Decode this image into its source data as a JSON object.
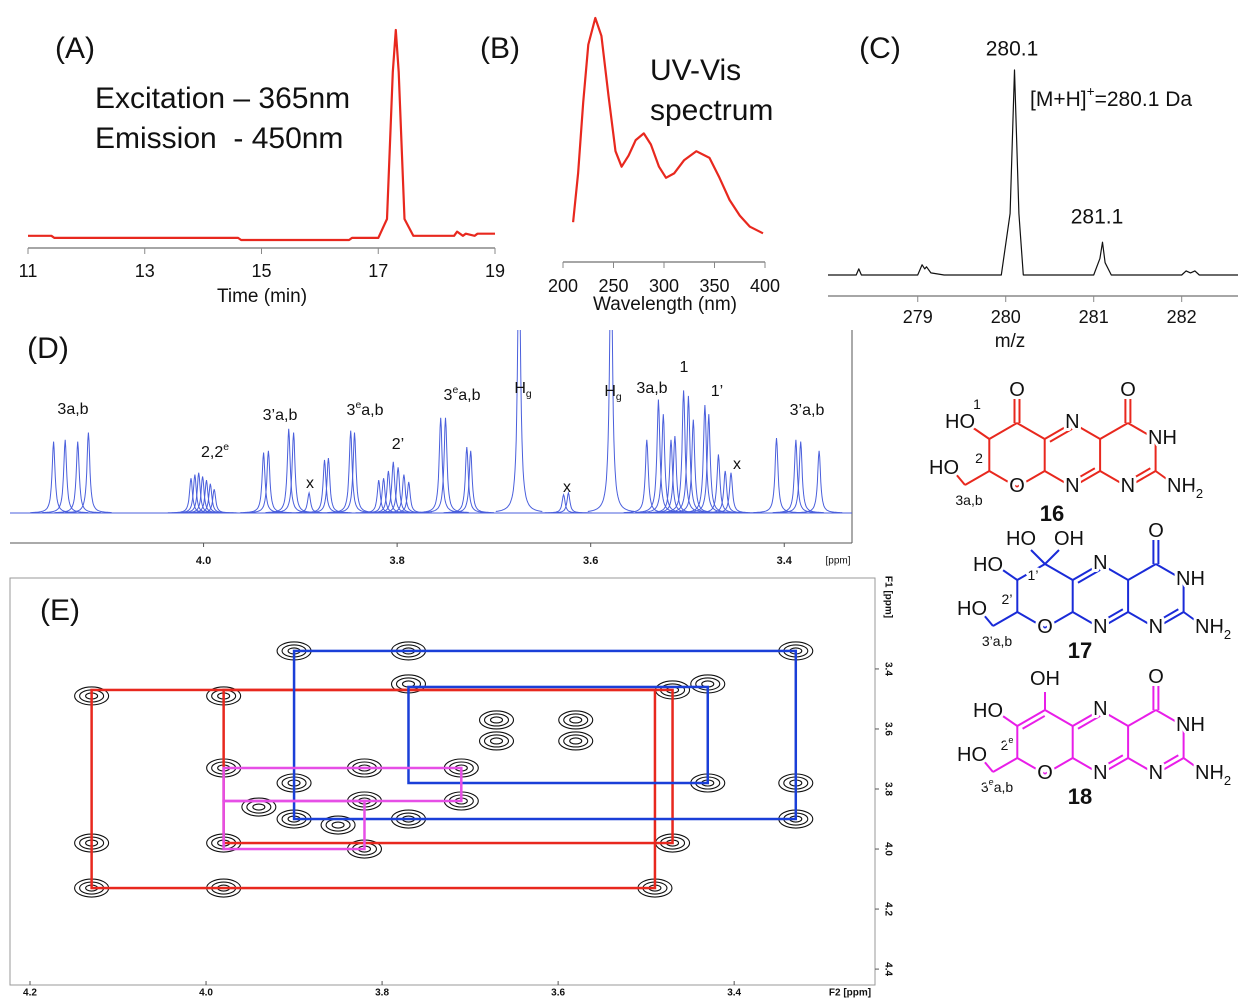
{
  "chart_data": [
    {
      "type": "line",
      "label": "(A)",
      "annotations": [
        "Excitation – 365nm",
        "Emission  - 450nm"
      ],
      "x_label": "Time (min)",
      "x": [
        11,
        11.4,
        11.45,
        14.6,
        14.65,
        16.5,
        16.55,
        17.0,
        17.15,
        17.25,
        17.3,
        17.35,
        17.45,
        17.6,
        18.3,
        18.35,
        18.45,
        18.5,
        18.65,
        18.7,
        18.85,
        19
      ],
      "values": [
        2,
        2,
        1,
        1,
        0,
        0,
        1,
        1,
        10,
        80,
        100,
        80,
        10,
        2,
        2,
        4,
        2,
        3,
        2,
        3,
        3,
        3
      ],
      "color": "#e8281e",
      "xlim": [
        11,
        19
      ],
      "xticks": [
        11,
        13,
        15,
        17,
        19
      ],
      "ylim": [
        0,
        100
      ]
    },
    {
      "type": "line",
      "label": "(B)",
      "annotations": [
        "UV-Vis",
        "spectrum"
      ],
      "x_label": "Wavelength (nm)",
      "x": [
        210,
        215,
        220,
        225,
        232,
        238,
        245,
        252,
        258,
        265,
        272,
        280,
        287,
        295,
        302,
        310,
        320,
        332,
        345,
        355,
        365,
        375,
        385,
        398
      ],
      "values": [
        8,
        30,
        62,
        88,
        100,
        92,
        65,
        40,
        33,
        38,
        45,
        48,
        43,
        33,
        28,
        30,
        36,
        40,
        37,
        28,
        18,
        11,
        6,
        3
      ],
      "color": "#e8281e",
      "xlim": [
        200,
        400
      ],
      "xticks": [
        200,
        250,
        300,
        350,
        400
      ],
      "ylim": [
        0,
        100
      ]
    },
    {
      "type": "line",
      "label": "(C)",
      "annotation": [
        "[M+H]",
        "+",
        "=280.1 Da"
      ],
      "peak_labels": [
        "280.1",
        "281.1"
      ],
      "x_label": "m/z",
      "x": [
        277.98,
        278.3,
        278.33,
        278.36,
        279.0,
        279.05,
        279.08,
        279.1,
        279.15,
        279.3,
        279.95,
        280.05,
        280.1,
        280.15,
        280.2,
        281.0,
        281.07,
        281.1,
        281.13,
        281.2,
        282.0,
        282.05,
        282.1,
        282.15,
        282.2,
        282.64
      ],
      "values": [
        0,
        0,
        3,
        0,
        0,
        5,
        3,
        4,
        1,
        0,
        0,
        30,
        100,
        30,
        0,
        0,
        8,
        16,
        6,
        0,
        0,
        2,
        1,
        2,
        0,
        0
      ],
      "color": "#111111",
      "xlim": [
        277.98,
        282.64
      ],
      "xticks": [
        279,
        280,
        281,
        282
      ],
      "ylim": [
        0,
        100
      ]
    },
    {
      "type": "nmr1d",
      "label": "(D)",
      "x_unit": "[ppm]",
      "color": "#4a5fdc",
      "annotations": [
        [
          "3a,b"
        ],
        [
          "2,2",
          "e"
        ],
        [
          "3’a,b"
        ],
        [
          "x"
        ],
        [
          "3",
          "e",
          "a,b"
        ],
        [
          "2’"
        ],
        [
          "3",
          "e",
          "a,b"
        ],
        [
          "H",
          "g"
        ],
        [
          "x"
        ],
        [
          "H",
          "g"
        ],
        [
          "3a,b"
        ],
        [
          "1"
        ],
        [
          "1’"
        ],
        [
          "x"
        ],
        [
          "3’a,b"
        ]
      ],
      "x": [
        4.155,
        4.143,
        4.13,
        4.119,
        4.013,
        4.009,
        4.005,
        4.001,
        3.997,
        3.993,
        3.989,
        3.938,
        3.933,
        3.912,
        3.907,
        3.891,
        3.875,
        3.871,
        3.848,
        3.844,
        3.819,
        3.814,
        3.809,
        3.804,
        3.799,
        3.793,
        3.788,
        3.755,
        3.75,
        3.728,
        3.724,
        3.674,
        3.628,
        3.623,
        3.579,
        3.542,
        3.53,
        3.525,
        3.517,
        3.513,
        3.504,
        3.499,
        3.494,
        3.482,
        3.478,
        3.468,
        3.461,
        3.455,
        3.408,
        3.388,
        3.383,
        3.364
      ],
      "values": [
        39,
        40,
        39,
        44,
        19,
        21,
        22,
        20,
        18,
        16,
        13,
        33,
        34,
        46,
        44,
        11,
        29,
        30,
        45,
        44,
        18,
        19,
        23,
        28,
        25,
        21,
        17,
        52,
        52,
        36,
        34,
        150,
        10,
        11,
        150,
        40,
        62,
        54,
        40,
        42,
        67,
        64,
        51,
        59,
        54,
        32,
        23,
        22,
        41,
        40,
        39,
        34
      ],
      "xlim": [
        4.2,
        3.33
      ],
      "xticks": [
        {
          "value": 4,
          "label": "4.0"
        },
        3.8,
        3.6,
        3.4
      ],
      "ylim": [
        0,
        100
      ]
    },
    {
      "type": "contour2d",
      "label": "(E)",
      "x_label": "F2 [ppm]",
      "y_label": "F1 [ppm]",
      "xlim": [
        4.2,
        3.24
      ],
      "xticks": [
        4.2,
        {
          "value": 4,
          "label": "4.0"
        },
        3.8,
        3.6,
        3.4
      ],
      "ylim": [
        3.097,
        4.453
      ],
      "yticks": [
        3.4,
        3.6,
        3.8,
        {
          "value": 4,
          "label": "4.0"
        },
        4.2,
        4.4
      ],
      "boxes": [
        {
          "color": "#e8281e",
          "x": [
            4.13,
            3.49
          ],
          "y": [
            3.47,
            4.13
          ]
        },
        {
          "color": "#e8281e",
          "x": [
            3.98,
            3.47
          ],
          "y": [
            3.47,
            3.98
          ]
        },
        {
          "color": "#1a3fd8",
          "x": [
            3.9,
            3.33
          ],
          "y": [
            3.34,
            3.9
          ]
        },
        {
          "color": "#1a3fd8",
          "x": [
            3.77,
            3.43
          ],
          "y": [
            3.46,
            3.78
          ]
        },
        {
          "color": "#e64fe6",
          "x": [
            3.98,
            3.71
          ],
          "y": [
            3.73,
            3.84
          ]
        },
        {
          "color": "#e64fe6",
          "x": [
            3.98,
            3.82
          ],
          "y": [
            3.84,
            4.0
          ]
        }
      ],
      "cross_peaks": {
        "x": [
          4.13,
          3.98,
          4.13,
          3.98,
          4.13,
          3.98,
          3.47,
          3.47,
          3.49,
          3.9,
          3.77,
          3.33,
          3.77,
          3.43,
          3.33,
          3.43,
          3.33,
          3.9,
          3.77,
          3.9,
          3.82,
          3.71,
          3.82,
          3.71,
          3.98,
          3.82,
          3.67,
          3.58,
          3.67,
          3.58,
          3.94,
          3.85
        ],
        "y": [
          3.49,
          3.49,
          3.98,
          3.98,
          4.13,
          4.13,
          3.47,
          3.98,
          4.13,
          3.34,
          3.34,
          3.34,
          3.45,
          3.45,
          3.78,
          3.78,
          3.9,
          3.9,
          3.9,
          3.78,
          3.73,
          3.73,
          3.84,
          3.84,
          3.73,
          4.0,
          3.57,
          3.57,
          3.64,
          3.64,
          3.86,
          3.92
        ]
      }
    }
  ],
  "structures": [
    {
      "number": "16",
      "color": "#e8281e",
      "labels": [
        [
          "O"
        ],
        [
          "O"
        ],
        [
          "HO"
        ],
        [
          "1"
        ],
        [
          "N"
        ],
        [
          "NH"
        ],
        [
          "2"
        ],
        [
          "O"
        ],
        [
          "N"
        ],
        [
          "N"
        ],
        [
          "NH",
          "2"
        ],
        [
          "HO"
        ],
        [
          "3a,b"
        ]
      ]
    },
    {
      "number": "17",
      "color": "#1a2bd8",
      "labels": [
        [
          "HO"
        ],
        [
          "OH"
        ],
        [
          "O"
        ],
        [
          "HO"
        ],
        [
          "1’"
        ],
        [
          "N"
        ],
        [
          "NH"
        ],
        [
          "2’"
        ],
        [
          "O"
        ],
        [
          "N"
        ],
        [
          "N"
        ],
        [
          "NH",
          "2"
        ],
        [
          "HO"
        ],
        [
          "3’a,b"
        ]
      ]
    },
    {
      "number": "18",
      "color": "#e81ee8",
      "labels": [
        [
          "OH"
        ],
        [
          "O"
        ],
        [
          "HO"
        ],
        [
          "N"
        ],
        [
          "NH"
        ],
        [
          "2",
          "e"
        ],
        [
          "O"
        ],
        [
          "N"
        ],
        [
          "N"
        ],
        [
          "NH",
          "2"
        ],
        [
          "HO"
        ],
        [
          "3",
          "e",
          "a,b"
        ]
      ]
    }
  ]
}
